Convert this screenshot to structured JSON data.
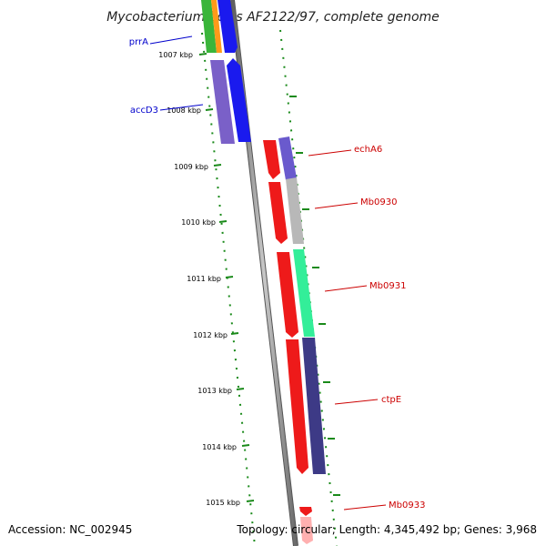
{
  "title": "Mycobacterium bovis AF2122/97, complete genome",
  "footer": {
    "accession": "Accession: NC_002945",
    "topology": "Topology: circular; Length: 4,345,492 bp; Genes: 3,968"
  },
  "colors": {
    "backbone": "#8c8c8c",
    "tick": "#1a8a1a",
    "label_left": "#0000cc",
    "label_right": "#cc0000"
  },
  "kbp_ticks": [
    "1007 kbp",
    "1008 kbp",
    "1009 kbp",
    "1010 kbp",
    "1011 kbp",
    "1012 kbp",
    "1013 kbp",
    "1014 kbp",
    "1015 kbp"
  ],
  "genes": [
    {
      "name": "prrA",
      "strand": "minus",
      "color": "#3ab53a"
    },
    {
      "name": "accD3",
      "strand": "minus",
      "color": "#7a60c8"
    },
    {
      "name": "echA6",
      "strand": "plus",
      "color": "#6a5acd"
    },
    {
      "name": "Mb0930",
      "strand": "plus",
      "color": "#b8b8b8"
    },
    {
      "name": "Mb0931",
      "strand": "plus",
      "color": "#33ee99"
    },
    {
      "name": "ctpE",
      "strand": "plus",
      "color": "#3d3a86"
    },
    {
      "name": "Mb0933",
      "strand": "plus",
      "color": "#ff3030"
    }
  ]
}
